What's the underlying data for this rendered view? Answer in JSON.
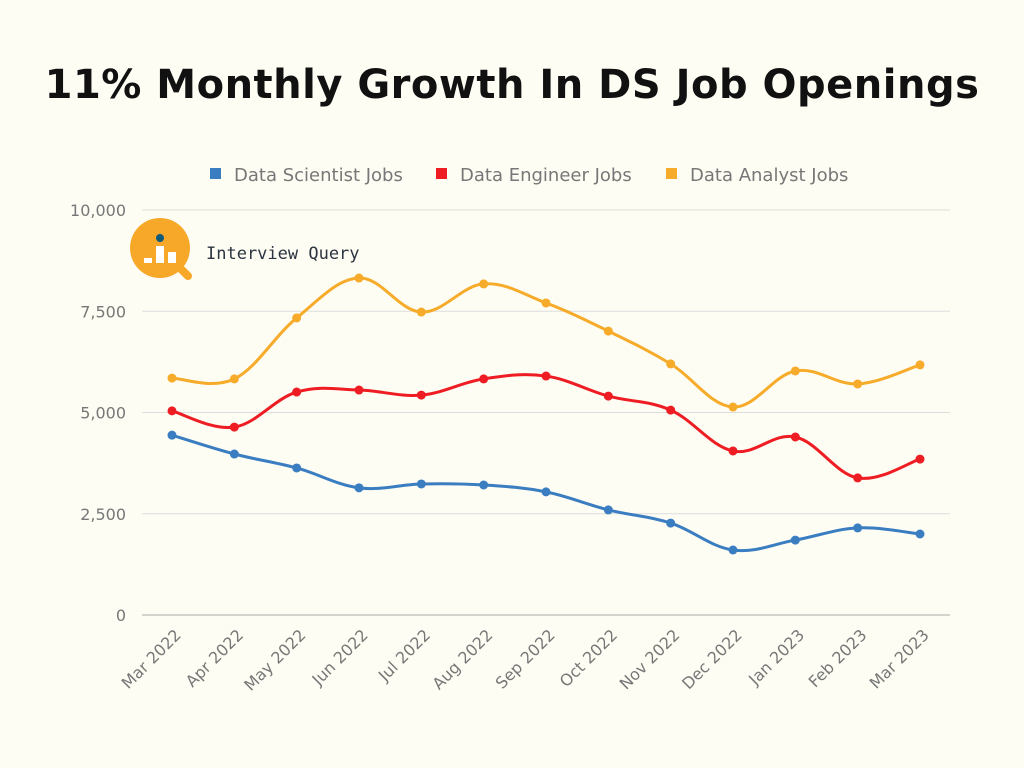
{
  "chart_data": {
    "type": "line",
    "title": "11% Monthly Growth In DS Job Openings",
    "categories": [
      "Mar 2022",
      "Apr 2022",
      "May 2022",
      "Jun 2022",
      "Jul 2022",
      "Aug 2022",
      "Sep 2022",
      "Oct 2022",
      "Nov 2022",
      "Dec 2022",
      "Jan 2023",
      "Feb 2023",
      "Mar 2023"
    ],
    "ylim": [
      0,
      10000
    ],
    "yticks": [
      0,
      2500,
      5000,
      7500,
      10000
    ],
    "ytick_labels": [
      "0",
      "2,500",
      "5,000",
      "7,500",
      "10,000"
    ],
    "grid": true,
    "legend_placement": "top",
    "smooth": true,
    "series": [
      {
        "name": "Data Scientist Jobs",
        "color": "#3a7dc1",
        "values": [
          4440,
          3975,
          3630,
          3140,
          3235,
          3210,
          3040,
          2595,
          2270,
          1605,
          1850,
          2150,
          2000
        ]
      },
      {
        "name": "Data Engineer Jobs",
        "color": "#ee1d23",
        "values": [
          5040,
          4640,
          5505,
          5555,
          5430,
          5830,
          5900,
          5405,
          5060,
          4050,
          4395,
          3385,
          3850
        ]
      },
      {
        "name": "Data Analyst Jobs",
        "color": "#f7ab2a",
        "values": [
          5850,
          5830,
          7335,
          8320,
          7480,
          8175,
          7705,
          7010,
          6200,
          5135,
          6025,
          5705,
          6175
        ]
      }
    ]
  },
  "logo": {
    "text": "Interview Query",
    "color": "#f7a829",
    "dot_color": "#0f5a78"
  }
}
